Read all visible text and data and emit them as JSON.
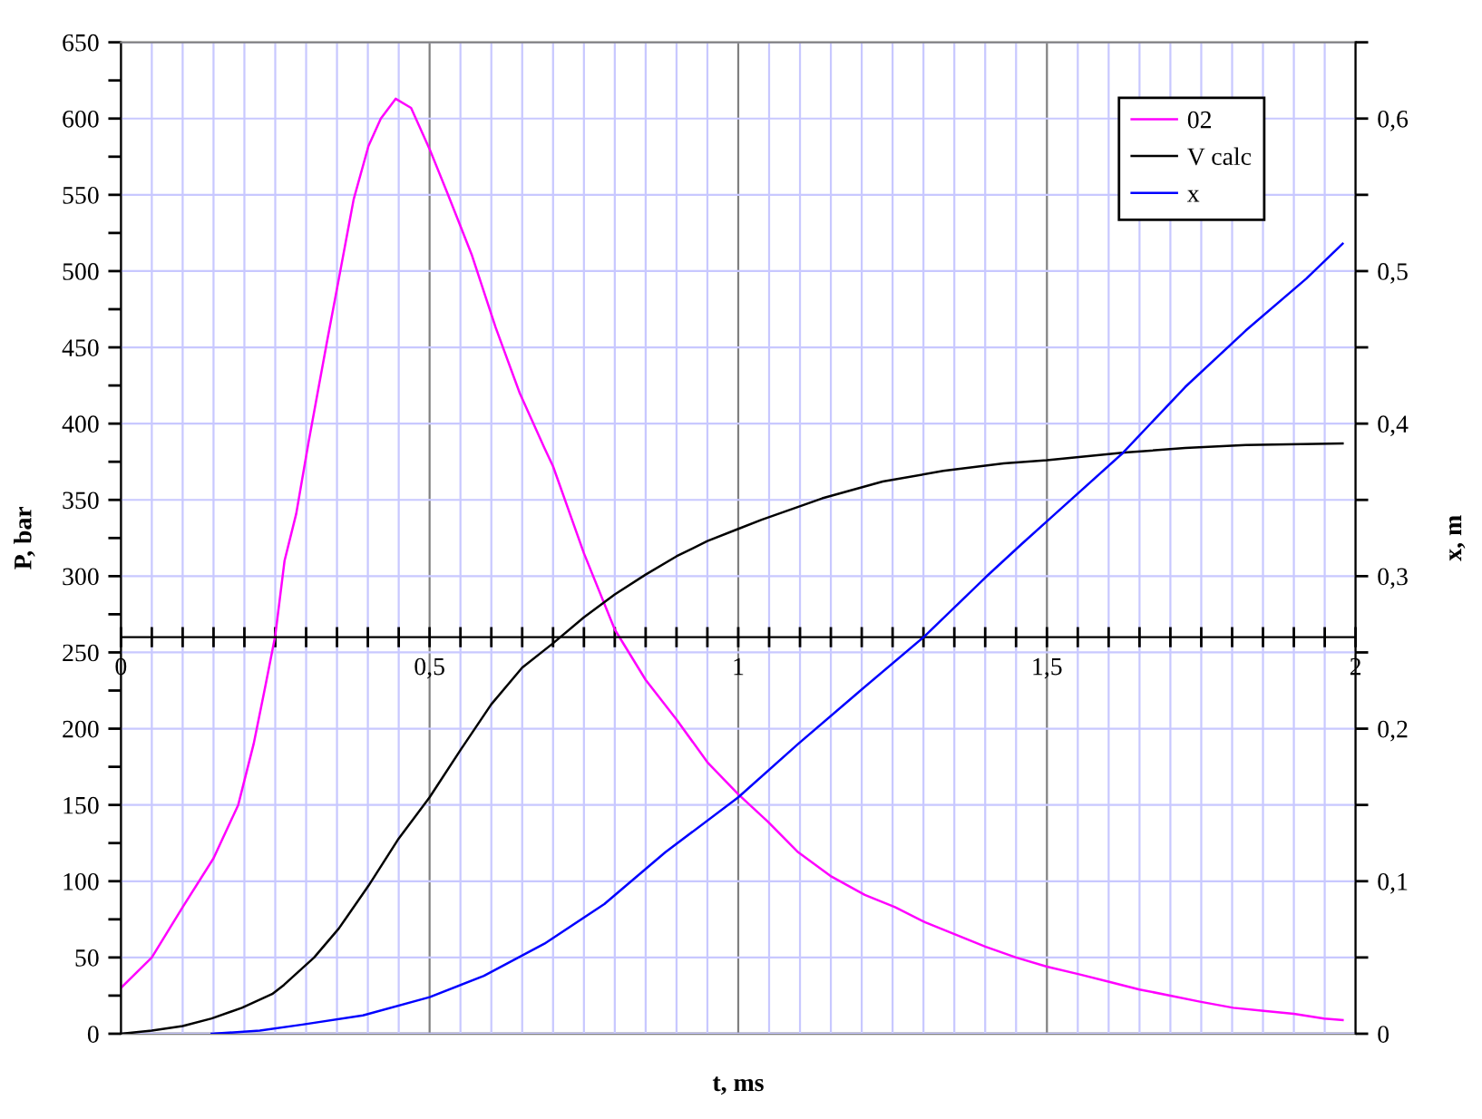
{
  "chart_data": {
    "type": "line",
    "xlabel": "t, ms",
    "ylabel": "P, bar",
    "y2label": "x, m",
    "grid": true,
    "legend": "top right",
    "xlim": [
      0,
      2
    ],
    "xticks": [
      0,
      {
        "value": 0.05,
        "label": null
      },
      {
        "value": 0.1,
        "label": null
      },
      {
        "value": 0.15,
        "label": null
      },
      {
        "value": 0.2,
        "label": null
      },
      {
        "value": 0.25,
        "label": null
      },
      {
        "value": 0.3,
        "label": null
      },
      {
        "value": 0.35,
        "label": null
      },
      {
        "value": 0.4,
        "label": null
      },
      {
        "value": 0.45,
        "label": null
      },
      {
        "value": 0.5,
        "label": "0,5"
      },
      {
        "value": 0.55,
        "label": null
      },
      {
        "value": 0.6,
        "label": null
      },
      {
        "value": 0.65,
        "label": null
      },
      {
        "value": 0.7,
        "label": null
      },
      {
        "value": 0.75,
        "label": null
      },
      {
        "value": 0.8,
        "label": null
      },
      {
        "value": 0.85,
        "label": null
      },
      {
        "value": 0.9,
        "label": null
      },
      {
        "value": 0.95,
        "label": null
      },
      1,
      {
        "value": 1.05,
        "label": null
      },
      {
        "value": 1.1,
        "label": null
      },
      {
        "value": 1.15,
        "label": null
      },
      {
        "value": 1.2,
        "label": null
      },
      {
        "value": 1.25,
        "label": null
      },
      {
        "value": 1.3,
        "label": null
      },
      {
        "value": 1.35,
        "label": null
      },
      {
        "value": 1.4,
        "label": null
      },
      {
        "value": 1.45,
        "label": null
      },
      {
        "value": 1.5,
        "label": "1,5"
      },
      {
        "value": 1.55,
        "label": null
      },
      {
        "value": 1.6,
        "label": null
      },
      {
        "value": 1.65,
        "label": null
      },
      {
        "value": 1.7,
        "label": null
      },
      {
        "value": 1.75,
        "label": null
      },
      {
        "value": 1.8,
        "label": null
      },
      {
        "value": 1.85,
        "label": null
      },
      {
        "value": 1.9,
        "label": null
      },
      {
        "value": 1.95,
        "label": null
      },
      2
    ],
    "ylim": [
      0,
      650
    ],
    "yticks": [
      0,
      {
        "value": 25,
        "label": null
      },
      50,
      {
        "value": 75,
        "label": null
      },
      100,
      {
        "value": 125,
        "label": null
      },
      150,
      {
        "value": 175,
        "label": null
      },
      200,
      {
        "value": 225,
        "label": null
      },
      250,
      {
        "value": 275,
        "label": null
      },
      300,
      {
        "value": 325,
        "label": null
      },
      350,
      {
        "value": 375,
        "label": null
      },
      400,
      {
        "value": 425,
        "label": null
      },
      450,
      {
        "value": 475,
        "label": null
      },
      500,
      {
        "value": 525,
        "label": null
      },
      550,
      {
        "value": 575,
        "label": null
      },
      600,
      {
        "value": 625,
        "label": null
      },
      650
    ],
    "y2lim": [
      0,
      0.65
    ],
    "y2ticks": [
      0,
      {
        "value": 0.05,
        "label": null
      },
      {
        "value": 0.1,
        "label": "0,1"
      },
      {
        "value": 0.15,
        "label": null
      },
      {
        "value": 0.2,
        "label": "0,2"
      },
      {
        "value": 0.25,
        "label": null
      },
      {
        "value": 0.3,
        "label": "0,3"
      },
      {
        "value": 0.35,
        "label": null
      },
      {
        "value": 0.4,
        "label": "0,4"
      },
      {
        "value": 0.45,
        "label": null
      },
      {
        "value": 0.5,
        "label": "0,5"
      },
      {
        "value": 0.55,
        "label": null
      },
      {
        "value": 0.6,
        "label": "0,6"
      },
      {
        "value": 0.65,
        "label": null
      }
    ],
    "series": [
      {
        "name": "02",
        "color": "#ff00ff",
        "x": [
          0,
          0.05,
          0.1,
          0.15,
          0.19,
          0.215,
          0.235,
          0.25,
          0.265,
          0.284,
          0.304,
          0.333,
          0.353,
          0.377,
          0.401,
          0.421,
          0.445,
          0.47,
          0.5,
          0.529,
          0.568,
          0.607,
          0.646,
          0.686,
          0.7,
          0.75,
          0.8,
          0.85,
          0.9,
          0.95,
          1.0,
          1.048,
          1.097,
          1.151,
          1.205,
          1.254,
          1.303,
          1.352,
          1.401,
          1.45,
          1.5,
          1.552,
          1.601,
          1.65,
          1.7,
          1.748,
          1.802,
          1.851,
          1.9,
          1.949,
          1.979
        ],
        "values": [
          30,
          50,
          83,
          115,
          150,
          190,
          230,
          261,
          310,
          341,
          388,
          452,
          495,
          547,
          582,
          600,
          613,
          607,
          580,
          551,
          511,
          463,
          420,
          384,
          372,
          315,
          265,
          232,
          206,
          178,
          157,
          139,
          119,
          103,
          91,
          83,
          73,
          65,
          57,
          50,
          44,
          39,
          34,
          29,
          25,
          21,
          17,
          15,
          13,
          10,
          9
        ]
      },
      {
        "name": "V calc",
        "color": "#000000",
        "x": [
          0,
          0.05,
          0.1,
          0.147,
          0.196,
          0.245,
          0.264,
          0.313,
          0.353,
          0.401,
          0.45,
          0.5,
          0.55,
          0.6,
          0.65,
          0.7,
          0.75,
          0.8,
          0.85,
          0.9,
          0.95,
          1.0,
          1.038,
          1.136,
          1.234,
          1.332,
          1.43,
          1.5,
          1.626,
          1.724,
          1.822,
          1.979
        ],
        "values": [
          0,
          2,
          5,
          10,
          17,
          26,
          32,
          50,
          69,
          97,
          128,
          155,
          186,
          216,
          240,
          256,
          273,
          288,
          301,
          313,
          323,
          331,
          337,
          351,
          362,
          369,
          374,
          376,
          381,
          384,
          386,
          387
        ]
      },
      {
        "name": "x",
        "color": "#0000ff",
        "axis": "y2",
        "x": [
          0.147,
          0.225,
          0.294,
          0.392,
          0.5,
          0.588,
          0.686,
          0.783,
          0.882,
          1.0,
          1.097,
          1.195,
          1.303,
          1.4,
          1.459,
          1.5,
          1.621,
          1.724,
          1.822,
          1.92,
          1.979
        ],
        "values": [
          0,
          0.002,
          0.006,
          0.012,
          0.024,
          0.038,
          0.059,
          0.085,
          0.119,
          0.155,
          0.19,
          0.224,
          0.261,
          0.299,
          0.321,
          0.336,
          0.38,
          0.424,
          0.461,
          0.495,
          0.518
        ]
      }
    ]
  }
}
